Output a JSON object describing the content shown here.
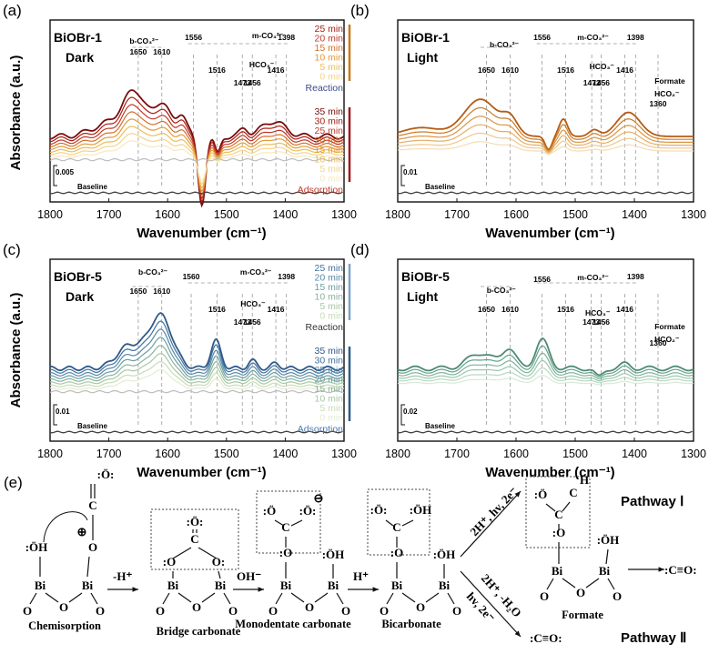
{
  "figure": {
    "y_axis_label": "Absorbance (a.u.)",
    "x_axis_label": "Wavenumber (cm⁻¹)"
  },
  "chart_data": [
    {
      "id": "a",
      "type": "line",
      "panel_label": "(a)",
      "sample": "BiOBr-1",
      "condition": "Dark",
      "xlabel": "Wavenumber (cm⁻¹)",
      "ylabel": "Absorbance (a.u.)",
      "xlim": [
        1800,
        1300
      ],
      "x_ticks": [
        "1800",
        "1700",
        "1600",
        "1500",
        "1400",
        "1300"
      ],
      "scale_bar": "0.005",
      "baseline_label": "Baseline",
      "peak_labels": [
        "1650",
        "1610",
        "1556",
        "1516",
        "1473",
        "1456",
        "1416",
        "1398"
      ],
      "group_labels": [
        "b-CO₃²⁻",
        "m-CO₃²⁻",
        "HCO₃⁻"
      ],
      "reaction_times": [
        "25 min",
        "20 min",
        "15 min",
        "10 min",
        "5 min",
        "0 min"
      ],
      "reaction_label": "Reaction",
      "adsorption_times": [
        "35 min",
        "30 min",
        "25 min",
        "20 min",
        "15 min",
        "10 min",
        "5 min",
        "0 min"
      ],
      "adsorption_label": "Adsorption",
      "series_colors": [
        "#7a0c0c",
        "#a81e12",
        "#c0392b",
        "#d4702a",
        "#e39b35",
        "#ecbd58",
        "#f3d489",
        "#f8e8bf",
        "#bcbcbc"
      ]
    },
    {
      "id": "b",
      "type": "line",
      "panel_label": "(b)",
      "sample": "BiOBr-1",
      "condition": "Light",
      "xlabel": "Wavenumber (cm⁻¹)",
      "xlim": [
        1800,
        1300
      ],
      "x_ticks": [
        "1800",
        "1700",
        "1600",
        "1500",
        "1400",
        "1300"
      ],
      "scale_bar": "0.01",
      "baseline_label": "Baseline",
      "peak_labels": [
        "1650",
        "1610",
        "1556",
        "1516",
        "1472",
        "1456",
        "1416",
        "1398",
        "1360"
      ],
      "group_labels": [
        "b-CO₃²⁻",
        "m-CO₃²⁻",
        "HCO₃⁻",
        "Formate",
        "HCO₂⁻"
      ],
      "series_colors": [
        "#b55c14",
        "#c97a27",
        "#d89444",
        "#e4ae66",
        "#eec78e",
        "#f5dcb4"
      ]
    },
    {
      "id": "c",
      "type": "line",
      "panel_label": "(c)",
      "sample": "BiOBr-5",
      "condition": "Dark",
      "xlabel": "Wavenumber (cm⁻¹)",
      "ylabel": "Absorbance (a.u.)",
      "xlim": [
        1800,
        1300
      ],
      "x_ticks": [
        "1800",
        "1700",
        "1600",
        "1500",
        "1400",
        "1300"
      ],
      "scale_bar": "0.01",
      "baseline_label": "Baseline",
      "peak_labels": [
        "1650",
        "1610",
        "1560",
        "1516",
        "1473",
        "1456",
        "1416",
        "1398"
      ],
      "group_labels": [
        "b-CO₃²⁻",
        "m-CO₃²⁻",
        "HCO₃⁻"
      ],
      "reaction_times": [
        "25 min",
        "20 min",
        "15 min",
        "10 min",
        "5 min",
        "0 min"
      ],
      "reaction_label": "Reaction",
      "adsorption_times": [
        "35 min",
        "30 min",
        "25 min",
        "20 min",
        "15 min",
        "10 min",
        "5 min",
        "0 min"
      ],
      "adsorption_label": "Adsorption",
      "series_colors": [
        "#2e5a8a",
        "#40719c",
        "#5588a8",
        "#6c9ea2",
        "#88b39d",
        "#a6c8a4",
        "#c7dcb6",
        "#e3ecd2",
        "#bcbcbc"
      ]
    },
    {
      "id": "d",
      "type": "line",
      "panel_label": "(d)",
      "sample": "BiOBr-5",
      "condition": "Light",
      "xlabel": "Wavenumber (cm⁻¹)",
      "xlim": [
        1800,
        1300
      ],
      "x_ticks": [
        "1800",
        "1700",
        "1600",
        "1500",
        "1400",
        "1300"
      ],
      "scale_bar": "0.02",
      "baseline_label": "Baseline",
      "peak_labels": [
        "1650",
        "1610",
        "1556",
        "1516",
        "1473",
        "1456",
        "1416",
        "1398",
        "1360"
      ],
      "group_labels": [
        "b-CO₃²⁻",
        "m-CO₃²⁻",
        "HCO₃⁻",
        "Formate",
        "HCO₂⁻"
      ],
      "series_colors": [
        "#4e8a74",
        "#64a08a",
        "#7cb49a",
        "#9ac6ac",
        "#b9d8c2",
        "#d8e9da"
      ]
    }
  ],
  "scheme": {
    "panel_label": "(e)",
    "stages": [
      "Chemisorption",
      "Bridge carbonate",
      "Monodentate carbonate",
      "Bicarbonate",
      "Formate"
    ],
    "arrow_labels": [
      "-H⁺",
      "OH⁻",
      "H⁺",
      "2H⁺, hv, 2e⁻",
      "2H⁺, -H₂O",
      "hv, 2e⁻"
    ],
    "pathway_1": "Pathway Ⅰ",
    "pathway_2": "Pathway Ⅱ",
    "co_product": ":C≡O:"
  }
}
